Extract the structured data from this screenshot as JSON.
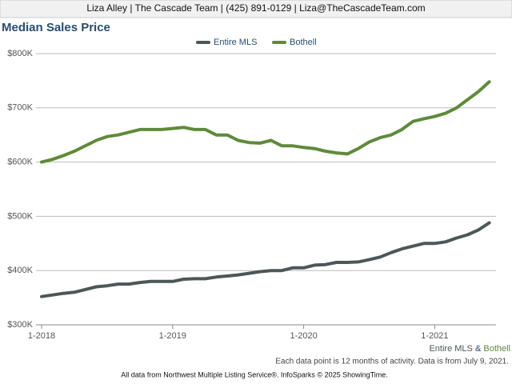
{
  "header": "Liza Alley | The Cascade Team | (425) 891-0129 | Liza@TheCascadeTeam.com",
  "chart_data": {
    "type": "line",
    "title": "Median Sales Price",
    "categories": [
      "1-2018",
      null,
      null,
      null,
      null,
      null,
      null,
      null,
      null,
      null,
      null,
      null,
      "1-2019",
      null,
      null,
      null,
      null,
      null,
      null,
      null,
      null,
      null,
      null,
      null,
      "1-2020",
      null,
      null,
      null,
      null,
      null,
      null,
      null,
      null,
      null,
      null,
      null,
      "1-2021",
      null,
      null,
      null,
      null,
      null
    ],
    "series": [
      {
        "name": "Entire MLS",
        "color": "#4e5757",
        "values": [
          352000,
          355000,
          358000,
          360000,
          365000,
          370000,
          372000,
          375000,
          375000,
          378000,
          380000,
          380000,
          380000,
          384000,
          385000,
          385000,
          388000,
          390000,
          392000,
          395000,
          398000,
          400000,
          400000,
          405000,
          405000,
          410000,
          411000,
          415000,
          415000,
          416000,
          420000,
          425000,
          433000,
          440000,
          445000,
          450000,
          450000,
          453000,
          460000,
          466000,
          475000,
          488000
        ]
      },
      {
        "name": "Bothell",
        "color": "#5f8a3a",
        "values": [
          600000,
          605000,
          612000,
          620000,
          630000,
          640000,
          647000,
          650000,
          655000,
          660000,
          660000,
          660000,
          662000,
          664000,
          660000,
          660000,
          650000,
          650000,
          640000,
          636000,
          635000,
          640000,
          630000,
          630000,
          627000,
          625000,
          620000,
          617000,
          615000,
          625000,
          637000,
          645000,
          650000,
          660000,
          675000,
          680000,
          684000,
          690000,
          700000,
          715000,
          730000,
          748000
        ]
      }
    ],
    "ylim": [
      300000,
      800000
    ],
    "yticks": [
      {
        "value": 300000,
        "label": "$300K"
      },
      {
        "value": 400000,
        "label": "$400K"
      },
      {
        "value": 500000,
        "label": "$500K"
      },
      {
        "value": 600000,
        "label": "$600K"
      },
      {
        "value": 700000,
        "label": "$700K"
      },
      {
        "value": 800000,
        "label": "$800K"
      }
    ],
    "grid": true,
    "legend": "top",
    "caption_separator": "&",
    "note": "Each data point is 12 months of activity. Data is from July 9, 2021.",
    "footer": "All data from Northwest Multiple Listing Service®. InfoSparks © 2025 ShowingTime."
  }
}
